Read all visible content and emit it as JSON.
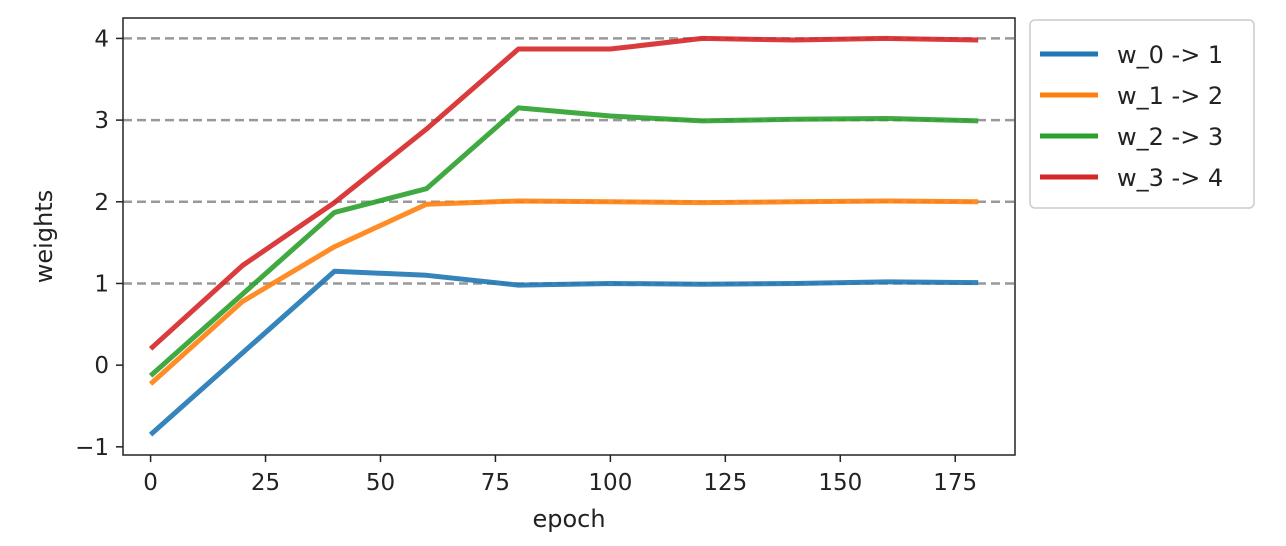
{
  "chart_data": {
    "type": "line",
    "title": "",
    "xlabel": "epoch",
    "ylabel": "weights",
    "xlim": [
      -6,
      188
    ],
    "ylim": [
      -1.1,
      4.25
    ],
    "x_ticks": [
      0,
      25,
      50,
      75,
      100,
      125,
      150,
      175
    ],
    "x_tick_labels": [
      "0",
      "25",
      "50",
      "75",
      "100",
      "125",
      "150",
      "175"
    ],
    "y_ticks": [
      -1,
      0,
      1,
      2,
      3,
      4
    ],
    "y_tick_labels": [
      "−1",
      "0",
      "1",
      "2",
      "3",
      "4"
    ],
    "grid": false,
    "reference_lines": [
      1,
      2,
      3,
      4
    ],
    "reference_line_style": "dashed",
    "reference_line_color": "#999999",
    "legend_position": "outside-right-top",
    "x": [
      0,
      20,
      40,
      60,
      80,
      100,
      120,
      140,
      160,
      180
    ],
    "series": [
      {
        "name": "w_0 -> 1",
        "color": "#1f77b4",
        "values": [
          -0.85,
          0.15,
          1.15,
          1.1,
          0.98,
          1.0,
          0.99,
          1.0,
          1.02,
          1.01
        ]
      },
      {
        "name": "w_1 -> 2",
        "color": "#ff7f0e",
        "values": [
          -0.23,
          0.78,
          1.45,
          1.97,
          2.01,
          2.0,
          1.99,
          2.0,
          2.01,
          2.0
        ]
      },
      {
        "name": "w_2 -> 3",
        "color": "#2ca02c",
        "values": [
          -0.13,
          0.87,
          1.87,
          2.16,
          3.15,
          3.05,
          2.99,
          3.01,
          3.02,
          2.99
        ]
      },
      {
        "name": "w_3 -> 4",
        "color": "#d62728",
        "values": [
          0.2,
          1.22,
          1.99,
          2.89,
          3.87,
          3.87,
          4.0,
          3.98,
          4.0,
          3.98
        ]
      }
    ]
  }
}
